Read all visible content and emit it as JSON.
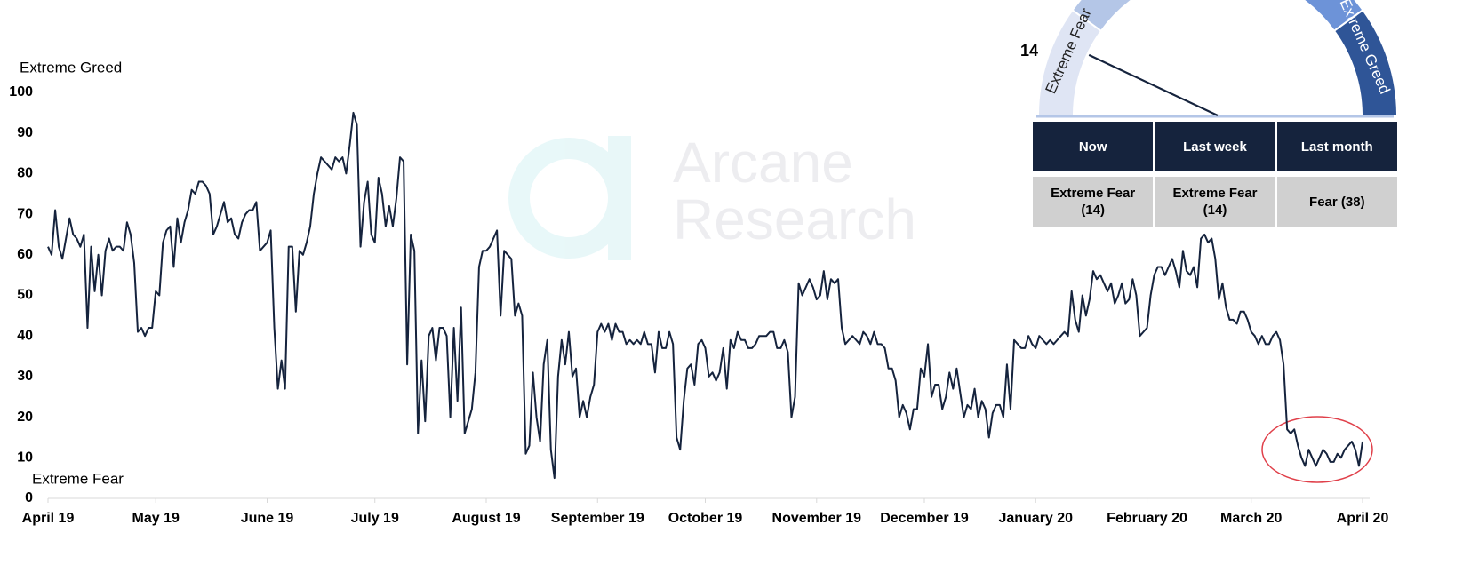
{
  "chart_data": {
    "type": "line",
    "color": "#15233d",
    "upper_label": "Extreme Greed",
    "lower_label": "Extreme Fear",
    "values": [
      62,
      60,
      71,
      62,
      59,
      64,
      69,
      65,
      64,
      62,
      65,
      42,
      62,
      51,
      60,
      50,
      61,
      64,
      61,
      62,
      62,
      61,
      68,
      65,
      58,
      41,
      42,
      40,
      42,
      42,
      51,
      50,
      63,
      66,
      67,
      57,
      69,
      63,
      68,
      71,
      76,
      75,
      78,
      78,
      77,
      75,
      65,
      67,
      70,
      73,
      68,
      69,
      65,
      64,
      68,
      70,
      71,
      71,
      73,
      61,
      62,
      63,
      66,
      42,
      27,
      34,
      27,
      62,
      62,
      46,
      61,
      60,
      63,
      67,
      75,
      80,
      84,
      83,
      82,
      81,
      84,
      83,
      84,
      80,
      87,
      95,
      92,
      62,
      73,
      78,
      65,
      63,
      79,
      75,
      67,
      72,
      67,
      74,
      84,
      83,
      33,
      65,
      61,
      16,
      34,
      19,
      40,
      42,
      34,
      42,
      42,
      40,
      20,
      42,
      24,
      47,
      16,
      19,
      22,
      31,
      57,
      61,
      61,
      62,
      64,
      66,
      45,
      61,
      60,
      59,
      45,
      48,
      45,
      11,
      13,
      31,
      20,
      14,
      33,
      39,
      12,
      5,
      30,
      39,
      33,
      41,
      30,
      32,
      20,
      24,
      20,
      25,
      28,
      41,
      43,
      41,
      43,
      39,
      43,
      41,
      41,
      38,
      39,
      38,
      39,
      38,
      41,
      38,
      38,
      31,
      41,
      37,
      37,
      41,
      38,
      15,
      12,
      24,
      32,
      33,
      28,
      38,
      39,
      37,
      30,
      31,
      29,
      31,
      37,
      27,
      39,
      37,
      41,
      39,
      39,
      37,
      37,
      38,
      40,
      40,
      40,
      41,
      41,
      37,
      37,
      39,
      36,
      20,
      25,
      53,
      50,
      52,
      54,
      52,
      49,
      50,
      56,
      49,
      54,
      53,
      54,
      42,
      38,
      39,
      40,
      39,
      38,
      41,
      40,
      38,
      41,
      38,
      38,
      37,
      32,
      32,
      29,
      20,
      23,
      21,
      17,
      22,
      22,
      32,
      30,
      38,
      25,
      28,
      28,
      22,
      25,
      31,
      27,
      32,
      26,
      20,
      23,
      22,
      27,
      20,
      24,
      22,
      15,
      21,
      23,
      23,
      20,
      33,
      22,
      39,
      38,
      37,
      37,
      40,
      38,
      37,
      40,
      39,
      38,
      39,
      38,
      39,
      40,
      41,
      40,
      51,
      44,
      41,
      50,
      45,
      49,
      56,
      54,
      55,
      53,
      51,
      53,
      48,
      50,
      53,
      48,
      49,
      54,
      50,
      40,
      41,
      42,
      50,
      55,
      57,
      57,
      55,
      57,
      59,
      56,
      52,
      61,
      56,
      55,
      57,
      52,
      64,
      65,
      63,
      64,
      59,
      49,
      53,
      47,
      44,
      44,
      43,
      46,
      46,
      44,
      41,
      40,
      38,
      40,
      38,
      38,
      40,
      41,
      39,
      33,
      17,
      16,
      17,
      13,
      10,
      8,
      12,
      10,
      8,
      10,
      12,
      11,
      9,
      9,
      11,
      10,
      12,
      13,
      14,
      12,
      8,
      14
    ],
    "xlim": [
      0,
      366
    ],
    "xticks": [
      {
        "value": 0,
        "label": "April 19"
      },
      {
        "value": 30,
        "label": "May 19"
      },
      {
        "value": 61,
        "label": "June 19"
      },
      {
        "value": 91,
        "label": "July 19"
      },
      {
        "value": 122,
        "label": "August 19"
      },
      {
        "value": 153,
        "label": "September 19"
      },
      {
        "value": 183,
        "label": "October 19"
      },
      {
        "value": 214,
        "label": "November 19"
      },
      {
        "value": 244,
        "label": "December 19"
      },
      {
        "value": 275,
        "label": "January 20"
      },
      {
        "value": 306,
        "label": "February 20"
      },
      {
        "value": 335,
        "label": "March 20"
      },
      {
        "value": 366,
        "label": "April 20"
      }
    ],
    "ylim": [
      0,
      100
    ],
    "yticks": [
      0,
      10,
      20,
      30,
      40,
      50,
      60,
      70,
      80,
      90,
      100
    ],
    "grid": false
  },
  "gauge": {
    "value": 14,
    "lim": [
      0,
      100
    ],
    "left_label": "Extreme Fear",
    "right_label": "Extreme Greed"
  },
  "table": {
    "header": [
      "Now",
      "Last week",
      "Last month"
    ],
    "rows": [
      [
        "Extreme Fear\n(14)",
        "Extreme Fear\n(14)",
        "Fear (38)"
      ]
    ]
  },
  "watermark": [
    "Arcane",
    "Research"
  ]
}
